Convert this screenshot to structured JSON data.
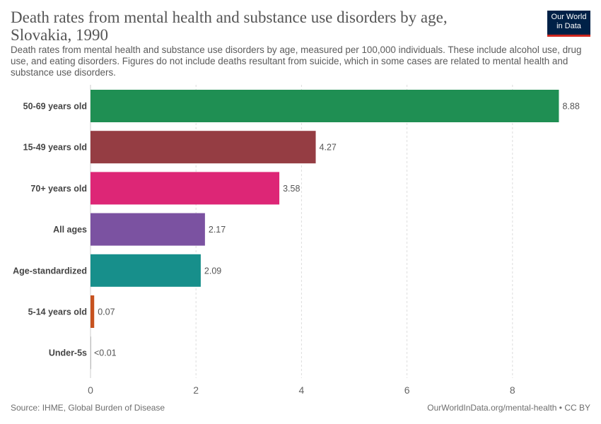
{
  "header": {
    "title": "Death rates from mental health and substance use disorders by age, Slovakia, 1990",
    "subtitle": "Death rates from mental health and substance use disorders by age, measured per 100,000 individuals. These include alcohol use, drug use, and eating disorders. Figures do not include deaths resultant from suicide, which in some cases are related to mental health and substance use disorders.",
    "logo_line1": "Our World",
    "logo_line2": "in Data"
  },
  "footer": {
    "source": "Source: IHME, Global Burden of Disease",
    "link": "OurWorldInData.org/mental-health • CC BY"
  },
  "chart_data": {
    "type": "bar",
    "orientation": "horizontal",
    "categories": [
      "50-69 years old",
      "15-49 years old",
      "70+ years old",
      "All ages",
      "Age-standardized",
      "5-14 years old",
      "Under-5s"
    ],
    "values": [
      8.88,
      4.27,
      3.58,
      2.17,
      2.09,
      0.07,
      0.0
    ],
    "value_labels": [
      "8.88",
      "4.27",
      "3.58",
      "2.17",
      "2.09",
      "0.07",
      "<0.01"
    ],
    "colors": [
      "#1f8f53",
      "#953d43",
      "#dd2676",
      "#7b52a1",
      "#178f8b",
      "#c7521f",
      "#bbbbbb"
    ],
    "xlim": [
      0,
      9.2
    ],
    "xticks": [
      0,
      2,
      4,
      6,
      8
    ],
    "xtick_labels": [
      "0",
      "2",
      "4",
      "6",
      "8"
    ],
    "grid": "vertical dashed"
  }
}
